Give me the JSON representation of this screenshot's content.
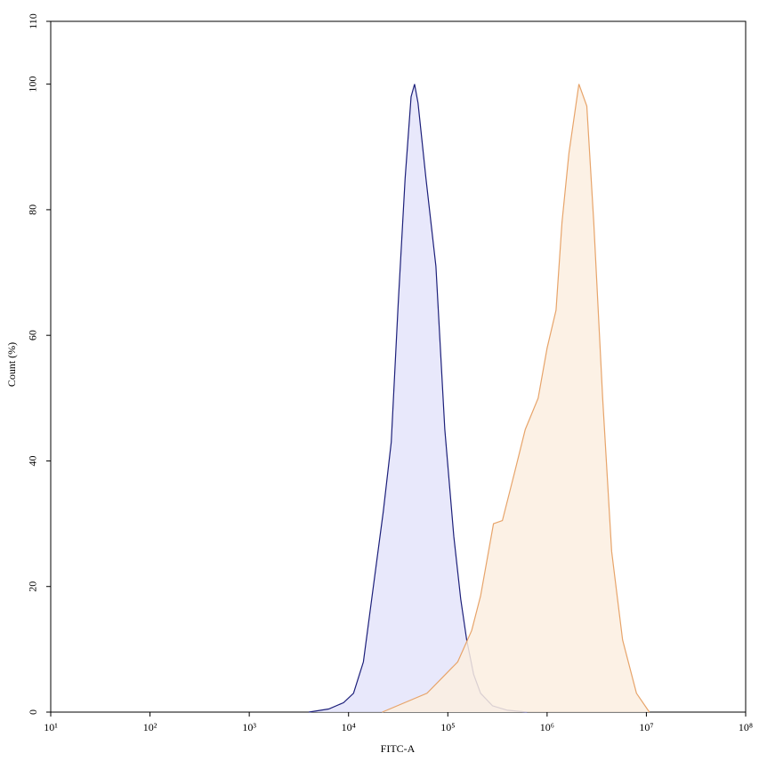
{
  "chart_data": {
    "type": "area",
    "xlabel": "FITC-A",
    "ylabel": "Count (%)",
    "xscale": "log",
    "xlim": [
      10,
      100000000
    ],
    "xticks": [
      {
        "value": 10,
        "label": "10¹"
      },
      {
        "value": 100,
        "label": "10²"
      },
      {
        "value": 1000,
        "label": "10³"
      },
      {
        "value": 10000,
        "label": "10⁴"
      },
      {
        "value": 100000,
        "label": "10⁵"
      },
      {
        "value": 1000000,
        "label": "10⁶"
      },
      {
        "value": 10000000,
        "label": "10⁷"
      },
      {
        "value": 100000000,
        "label": "10⁸"
      }
    ],
    "ylim": [
      0,
      110
    ],
    "yticks": [
      0,
      20,
      40,
      60,
      80,
      100,
      110
    ],
    "series": [
      {
        "color": "#1c1f7a",
        "fill": "#e4e4fa",
        "x": [
          3981,
          6310,
          8913,
          11220,
          14125,
          17783,
          22387,
          26915,
          31623,
          37154,
          42658,
          46238,
          50119,
          60256,
          75858,
          93325,
          114815,
          134896,
          154882,
          181970,
          213796,
          281838,
          398107,
          630957
        ],
        "values": [
          0,
          0.5,
          1.5,
          3,
          8,
          20,
          32,
          43,
          65,
          85,
          98,
          100,
          97,
          85,
          71,
          45,
          28,
          18,
          11.5,
          6,
          3,
          1,
          0.3,
          0
        ]
      },
      {
        "color": "#e7a46a",
        "fill": "#fcefe0",
        "x": [
          21878,
          61660,
          125893,
          173780,
          213796,
          288403,
          354813,
          467735,
          602560,
          812831,
          1000000,
          1230269,
          1412538,
          1659587,
          2089296,
          2511886,
          2951209,
          3630781,
          4466836,
          5754399,
          7943282,
          10715193
        ],
        "values": [
          0,
          3,
          8,
          13,
          18.5,
          30,
          30.5,
          38,
          45,
          50,
          58,
          64,
          78,
          89,
          100,
          96.5,
          78,
          50,
          25.6,
          11.5,
          3,
          0
        ]
      }
    ]
  }
}
